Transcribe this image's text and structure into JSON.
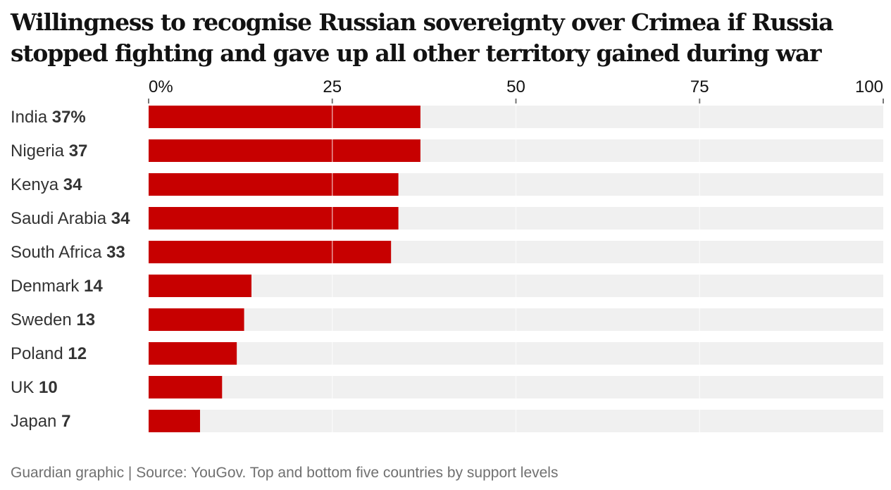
{
  "chart_data": {
    "type": "bar",
    "orientation": "horizontal",
    "title": "Willingness to recognise Russian sovereignty over Crimea if Russia stopped fighting and gave up all other territory gained during war",
    "xlabel": "",
    "ylabel": "",
    "xlim": [
      0,
      100
    ],
    "ticks": [
      0,
      25,
      50,
      75,
      100
    ],
    "tick_labels": [
      "0%",
      "25",
      "50",
      "75",
      "100"
    ],
    "grid": true,
    "categories": [
      "India",
      "Nigeria",
      "Kenya",
      "Saudi Arabia",
      "South Africa",
      "Denmark",
      "Sweden",
      "Poland",
      "UK",
      "Japan"
    ],
    "values": [
      37,
      37,
      34,
      34,
      33,
      14,
      13,
      12,
      10,
      7
    ],
    "value_labels": [
      "37%",
      "37",
      "34",
      "34",
      "33",
      "14",
      "13",
      "12",
      "10",
      "7"
    ],
    "colors": {
      "bar": "#c70000",
      "track": "#f0f0f0",
      "grid": "#ffffff"
    },
    "source": "Guardian graphic | Source: YouGov. Top and bottom five countries by support levels"
  }
}
